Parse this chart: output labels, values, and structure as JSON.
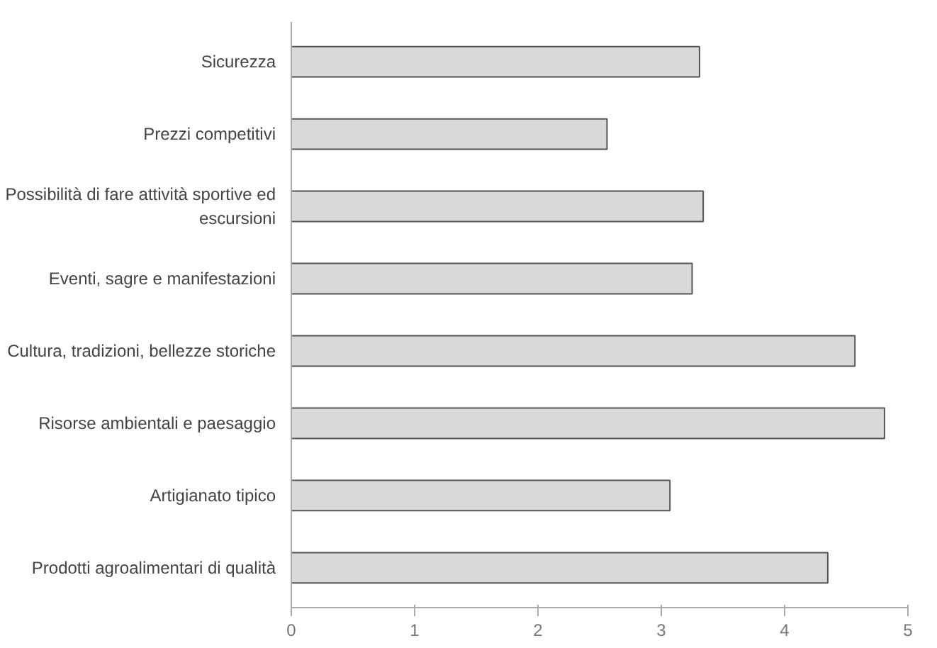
{
  "chart_data": {
    "type": "bar",
    "orientation": "horizontal",
    "categories": [
      "Sicurezza",
      "Prezzi competitivi",
      "Possibilità di fare attività sportive ed\nescursioni",
      "Eventi, sagre e manifestazioni",
      "Cultura, tradizioni, bellezze storiche",
      "Risorse ambientali e paesaggio",
      "Artigianato tipico",
      "Prodotti agroalimentari di qualità"
    ],
    "values": [
      3.31,
      2.56,
      3.34,
      3.25,
      4.57,
      4.81,
      3.07,
      4.35
    ],
    "color": "#d9d9d9",
    "xlim": [
      0,
      5
    ],
    "xticks": [
      0,
      1,
      2,
      3,
      4,
      5
    ]
  }
}
